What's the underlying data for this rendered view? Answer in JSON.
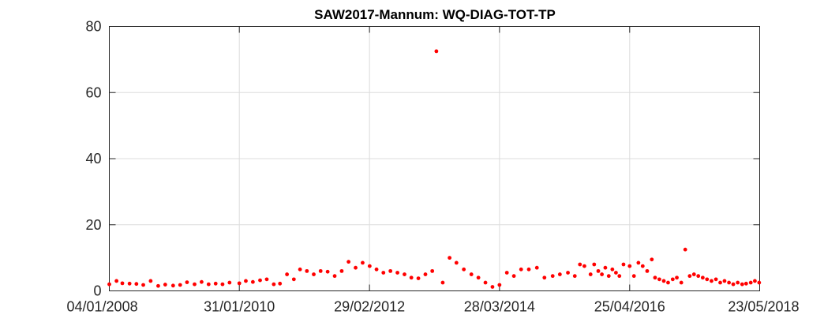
{
  "chart_data": {
    "type": "scatter",
    "title": "SAW2017-Mannum: WQ-DIAG-TOT-TP",
    "xlabel": "",
    "ylabel": "",
    "x_axis_type": "date",
    "xlim": [
      "2008-01-04",
      "2018-05-23"
    ],
    "ylim": [
      0,
      80
    ],
    "xtick_labels": [
      "04/01/2008",
      "31/01/2010",
      "29/02/2012",
      "28/03/2014",
      "25/04/2016",
      "23/05/2018"
    ],
    "ytick_labels": [
      "0",
      "20",
      "40",
      "60",
      "80"
    ],
    "grid": true,
    "marker_color": "#ff0000",
    "points": [
      [
        "2008-01-04",
        2.0
      ],
      [
        "2008-02-15",
        3.0
      ],
      [
        "2008-03-20",
        2.3
      ],
      [
        "2008-05-01",
        2.2
      ],
      [
        "2008-06-10",
        2.1
      ],
      [
        "2008-07-20",
        1.8
      ],
      [
        "2008-09-01",
        3.0
      ],
      [
        "2008-10-15",
        1.5
      ],
      [
        "2008-11-25",
        1.9
      ],
      [
        "2009-01-10",
        1.6
      ],
      [
        "2009-02-20",
        1.8
      ],
      [
        "2009-04-01",
        2.6
      ],
      [
        "2009-05-15",
        2.0
      ],
      [
        "2009-06-25",
        2.7
      ],
      [
        "2009-08-05",
        2.0
      ],
      [
        "2009-09-15",
        2.2
      ],
      [
        "2009-10-25",
        2.0
      ],
      [
        "2009-12-05",
        2.5
      ],
      [
        "2010-01-31",
        2.3
      ],
      [
        "2010-03-10",
        3.0
      ],
      [
        "2010-04-20",
        2.7
      ],
      [
        "2010-06-01",
        3.2
      ],
      [
        "2010-07-10",
        3.5
      ],
      [
        "2010-08-20",
        2.0
      ],
      [
        "2010-09-25",
        2.2
      ],
      [
        "2010-11-05",
        5.0
      ],
      [
        "2010-12-15",
        3.5
      ],
      [
        "2011-01-20",
        6.5
      ],
      [
        "2011-03-01",
        6.0
      ],
      [
        "2011-04-10",
        5.0
      ],
      [
        "2011-05-20",
        6.0
      ],
      [
        "2011-06-30",
        5.8
      ],
      [
        "2011-08-10",
        4.5
      ],
      [
        "2011-09-20",
        6.0
      ],
      [
        "2011-10-30",
        8.8
      ],
      [
        "2011-12-10",
        7.0
      ],
      [
        "2012-01-20",
        8.5
      ],
      [
        "2012-03-01",
        7.5
      ],
      [
        "2012-04-10",
        6.5
      ],
      [
        "2012-05-20",
        5.5
      ],
      [
        "2012-06-30",
        6.0
      ],
      [
        "2012-08-10",
        5.5
      ],
      [
        "2012-09-20",
        5.0
      ],
      [
        "2012-10-30",
        4.0
      ],
      [
        "2012-12-10",
        3.8
      ],
      [
        "2013-01-20",
        5.0
      ],
      [
        "2013-03-01",
        6.0
      ],
      [
        "2013-03-25",
        72.5
      ],
      [
        "2013-05-01",
        2.5
      ],
      [
        "2013-06-10",
        10.0
      ],
      [
        "2013-07-20",
        8.5
      ],
      [
        "2013-09-01",
        6.5
      ],
      [
        "2013-10-15",
        5.0
      ],
      [
        "2013-11-25",
        4.0
      ],
      [
        "2014-01-05",
        2.5
      ],
      [
        "2014-02-15",
        1.2
      ],
      [
        "2014-03-28",
        1.8
      ],
      [
        "2014-05-10",
        5.5
      ],
      [
        "2014-06-20",
        4.5
      ],
      [
        "2014-08-01",
        6.5
      ],
      [
        "2014-09-15",
        6.5
      ],
      [
        "2014-11-01",
        7.0
      ],
      [
        "2014-12-15",
        4.0
      ],
      [
        "2015-02-01",
        4.5
      ],
      [
        "2015-03-15",
        5.0
      ],
      [
        "2015-05-01",
        5.5
      ],
      [
        "2015-06-10",
        4.5
      ],
      [
        "2015-07-10",
        8.0
      ],
      [
        "2015-08-05",
        7.5
      ],
      [
        "2015-09-10",
        5.0
      ],
      [
        "2015-10-01",
        8.0
      ],
      [
        "2015-10-25",
        6.0
      ],
      [
        "2015-11-15",
        5.0
      ],
      [
        "2015-12-05",
        7.0
      ],
      [
        "2015-12-25",
        4.5
      ],
      [
        "2016-01-15",
        6.5
      ],
      [
        "2016-02-05",
        5.5
      ],
      [
        "2016-02-25",
        4.5
      ],
      [
        "2016-03-20",
        8.0
      ],
      [
        "2016-04-25",
        7.5
      ],
      [
        "2016-05-20",
        4.5
      ],
      [
        "2016-06-15",
        8.5
      ],
      [
        "2016-07-10",
        7.5
      ],
      [
        "2016-08-05",
        6.0
      ],
      [
        "2016-09-01",
        9.5
      ],
      [
        "2016-09-20",
        4.0
      ],
      [
        "2016-10-15",
        3.5
      ],
      [
        "2016-11-10",
        3.0
      ],
      [
        "2016-12-05",
        2.5
      ],
      [
        "2017-01-01",
        3.5
      ],
      [
        "2017-01-25",
        4.0
      ],
      [
        "2017-02-20",
        2.5
      ],
      [
        "2017-03-15",
        12.5
      ],
      [
        "2017-04-10",
        4.5
      ],
      [
        "2017-05-05",
        5.0
      ],
      [
        "2017-05-30",
        4.5
      ],
      [
        "2017-06-25",
        4.0
      ],
      [
        "2017-07-20",
        3.5
      ],
      [
        "2017-08-15",
        3.0
      ],
      [
        "2017-09-10",
        3.5
      ],
      [
        "2017-10-05",
        2.5
      ],
      [
        "2017-10-30",
        3.0
      ],
      [
        "2017-11-25",
        2.5
      ],
      [
        "2017-12-20",
        2.0
      ],
      [
        "2018-01-15",
        2.5
      ],
      [
        "2018-02-10",
        2.0
      ],
      [
        "2018-03-05",
        2.2
      ],
      [
        "2018-04-01",
        2.5
      ],
      [
        "2018-04-25",
        3.0
      ],
      [
        "2018-05-20",
        2.5
      ]
    ]
  }
}
